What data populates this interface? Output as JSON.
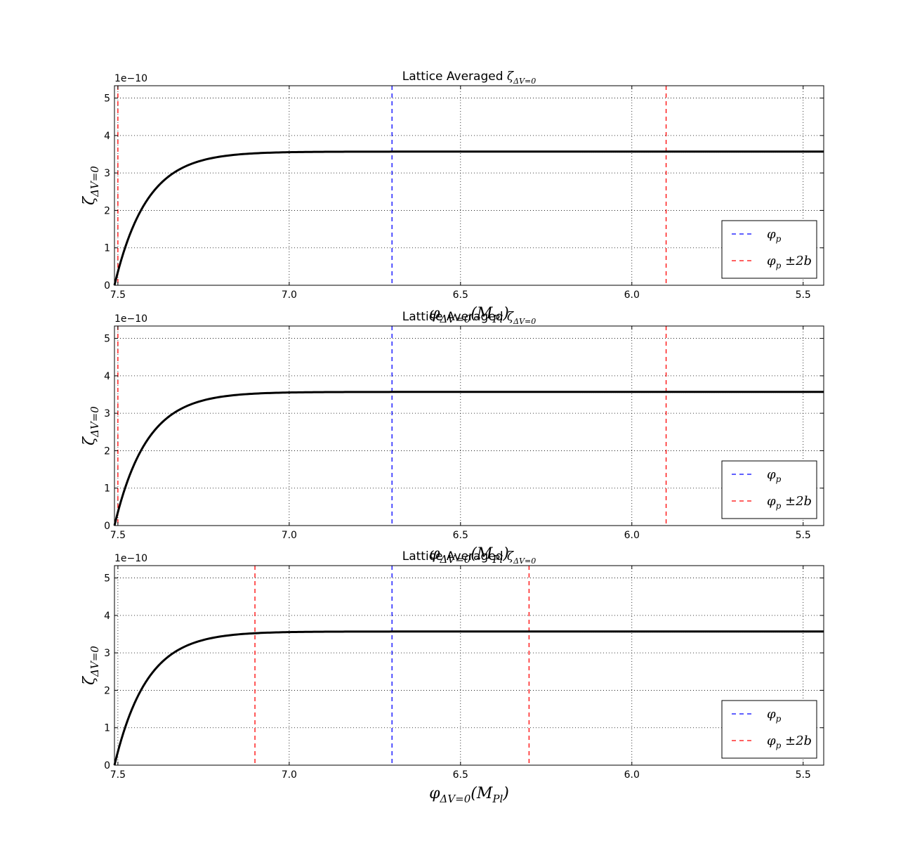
{
  "chart_data": [
    {
      "type": "line",
      "title": "Lattice Averaged",
      "title_math": "ζ",
      "title_sub": "ΔV=0",
      "xlabel_math": "φ",
      "xlabel_sub": "ΔV=0",
      "xlabel_tail": "(M",
      "xlabel_tail_sub": "Pl",
      "xlabel_close": ")",
      "ylabel_math": "ζ",
      "ylabel_sub": "ΔV=0",
      "y_offset_label": "1e−10",
      "xlim": [
        7.51,
        5.44
      ],
      "ylim": [
        0,
        5.33
      ],
      "y_scale": 1e-10,
      "x_ticks": [
        7.5,
        7.0,
        6.5,
        6.0,
        5.5
      ],
      "x_tick_labels": [
        "7.5",
        "7.0",
        "6.5",
        "6.0",
        "5.5"
      ],
      "y_ticks": [
        0,
        1,
        2,
        3,
        4,
        5
      ],
      "y_tick_labels": [
        "0",
        "1",
        "2",
        "3",
        "4",
        "5"
      ],
      "grid": true,
      "legend_position": "lower-right",
      "series": [
        {
          "name": "φ_p",
          "name_math": "φ",
          "name_sub": "p",
          "name_tail": "",
          "color": "#0000ff",
          "style": "dashed",
          "vlines": [
            6.7
          ]
        },
        {
          "name": "φ_p ±2b",
          "name_math": "φ",
          "name_sub": "p",
          "name_tail": " ±2b",
          "color": "#ff0000",
          "style": "dashed",
          "vlines": [
            7.5,
            5.9
          ]
        }
      ],
      "curve": {
        "color": "#000000",
        "saturation": 3.57,
        "x_start": 7.51,
        "decay": 0.094,
        "x": [
          7.51,
          7.4,
          7.3,
          7.2,
          7.0,
          6.5,
          6.0,
          5.44
        ],
        "y": [
          0.0,
          2.39,
          3.15,
          3.41,
          3.54,
          3.57,
          3.57,
          3.57
        ]
      }
    },
    {
      "type": "line",
      "title": "Lattice Averaged",
      "title_math": "ζ",
      "title_sub": "ΔV=0",
      "xlabel_math": "φ",
      "xlabel_sub": "ΔV=0",
      "xlabel_tail": "(M",
      "xlabel_tail_sub": "Pl",
      "xlabel_close": ")",
      "ylabel_math": "ζ",
      "ylabel_sub": "ΔV=0",
      "y_offset_label": "1e−10",
      "xlim": [
        7.51,
        5.44
      ],
      "ylim": [
        0,
        5.33
      ],
      "y_scale": 1e-10,
      "x_ticks": [
        7.5,
        7.0,
        6.5,
        6.0,
        5.5
      ],
      "x_tick_labels": [
        "7.5",
        "7.0",
        "6.5",
        "6.0",
        "5.5"
      ],
      "y_ticks": [
        0,
        1,
        2,
        3,
        4,
        5
      ],
      "y_tick_labels": [
        "0",
        "1",
        "2",
        "3",
        "4",
        "5"
      ],
      "grid": true,
      "legend_position": "lower-right",
      "series": [
        {
          "name": "φ_p",
          "name_math": "φ",
          "name_sub": "p",
          "name_tail": "",
          "color": "#0000ff",
          "style": "dashed",
          "vlines": [
            6.7
          ]
        },
        {
          "name": "φ_p ±2b",
          "name_math": "φ",
          "name_sub": "p",
          "name_tail": " ±2b",
          "color": "#ff0000",
          "style": "dashed",
          "vlines": [
            7.5,
            5.9
          ]
        }
      ],
      "curve": {
        "color": "#000000",
        "saturation": 3.57,
        "x_start": 7.51,
        "decay": 0.094,
        "x": [
          7.51,
          7.4,
          7.3,
          7.2,
          7.0,
          6.5,
          6.0,
          5.44
        ],
        "y": [
          0.0,
          2.39,
          3.15,
          3.41,
          3.54,
          3.57,
          3.57,
          3.57
        ]
      }
    },
    {
      "type": "line",
      "title": "Lattice Averaged",
      "title_math": "ζ",
      "title_sub": "ΔV=0",
      "xlabel_math": "φ",
      "xlabel_sub": "ΔV=0",
      "xlabel_tail": "(M",
      "xlabel_tail_sub": "Pl",
      "xlabel_close": ")",
      "ylabel_math": "ζ",
      "ylabel_sub": "ΔV=0",
      "y_offset_label": "1e−10",
      "xlim": [
        7.51,
        5.44
      ],
      "ylim": [
        0,
        5.33
      ],
      "y_scale": 1e-10,
      "x_ticks": [
        7.5,
        7.0,
        6.5,
        6.0,
        5.5
      ],
      "x_tick_labels": [
        "7.5",
        "7.0",
        "6.5",
        "6.0",
        "5.5"
      ],
      "y_ticks": [
        0,
        1,
        2,
        3,
        4,
        5
      ],
      "y_tick_labels": [
        "0",
        "1",
        "2",
        "3",
        "4",
        "5"
      ],
      "grid": true,
      "legend_position": "lower-right",
      "series": [
        {
          "name": "φ_p",
          "name_math": "φ",
          "name_sub": "p",
          "name_tail": "",
          "color": "#0000ff",
          "style": "dashed",
          "vlines": [
            6.7
          ]
        },
        {
          "name": "φ_p ±2b",
          "name_math": "φ",
          "name_sub": "p",
          "name_tail": " ±2b",
          "color": "#ff0000",
          "style": "dashed",
          "vlines": [
            7.1,
            6.3
          ]
        }
      ],
      "curve": {
        "color": "#000000",
        "saturation": 3.57,
        "x_start": 7.51,
        "decay": 0.094,
        "x": [
          7.51,
          7.4,
          7.3,
          7.2,
          7.0,
          6.5,
          6.0,
          5.44
        ],
        "y": [
          0.0,
          2.39,
          3.15,
          3.41,
          3.54,
          3.57,
          3.57,
          3.57
        ]
      }
    }
  ]
}
